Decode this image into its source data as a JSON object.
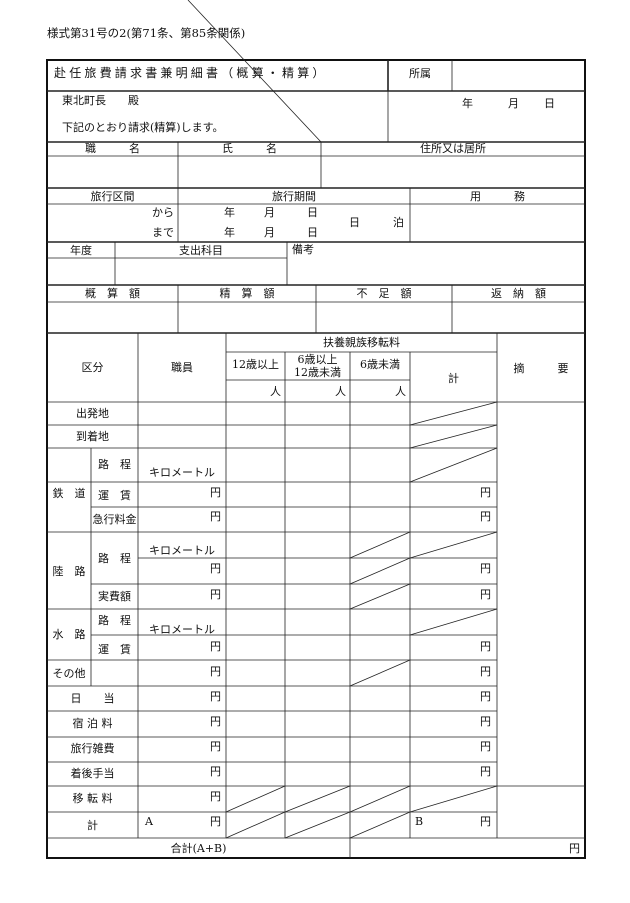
{
  "form_number": "様式第31号の2(第71条、第85条関係)",
  "title": "赴任旅費請求書兼明細書（概算・精算）",
  "affiliation_label": "所属",
  "addressee": "東北町長　　殿",
  "statement": "下記のとおり請求(精算)します。",
  "date": {
    "year": "年",
    "month": "月",
    "day": "日"
  },
  "person": {
    "position": "職　　　名",
    "name": "氏　　　名",
    "address": "住所又は居所"
  },
  "travel": {
    "section": "旅行区間",
    "period": "旅行期間",
    "business": "用　　　務",
    "from": "から",
    "to": "まで",
    "days": "日",
    "nights": "泊"
  },
  "budget": {
    "fiscal_year": "年度",
    "expense_item": "支出科目",
    "remarks": "備考"
  },
  "amounts": {
    "estimate": "概　算　額",
    "settlement": "精　算　額",
    "shortage": "不　足　額",
    "refund": "返　納　額"
  },
  "detail": {
    "category": "区分",
    "staff": "職員",
    "family_transfer": "扶養親族移転料",
    "age_12_over": "12歳以上",
    "age_6_12_a": "6歳以上",
    "age_6_12_b": "12歳未満",
    "age_under_6": "6歳未満",
    "total": "計",
    "summary": "摘　　　要",
    "person_unit": "人",
    "yen": "円",
    "km": "キロメートル",
    "rows": {
      "departure": "出発地",
      "arrival": "到着地",
      "railway": "鉄　道",
      "distance": "路　程",
      "fare": "運　賃",
      "express": "急行料金",
      "land": "陸　路",
      "actual": "実費額",
      "water": "水　路",
      "other": "その他",
      "daily": "日　　当",
      "lodging": "宿 泊 料",
      "misc": "旅行雑費",
      "arrival_allowance": "着後手当",
      "relocation": "移 転 料",
      "subtotal": "計"
    },
    "mark_a": "A",
    "mark_b": "B",
    "grand_total": "合計(A+B)"
  }
}
